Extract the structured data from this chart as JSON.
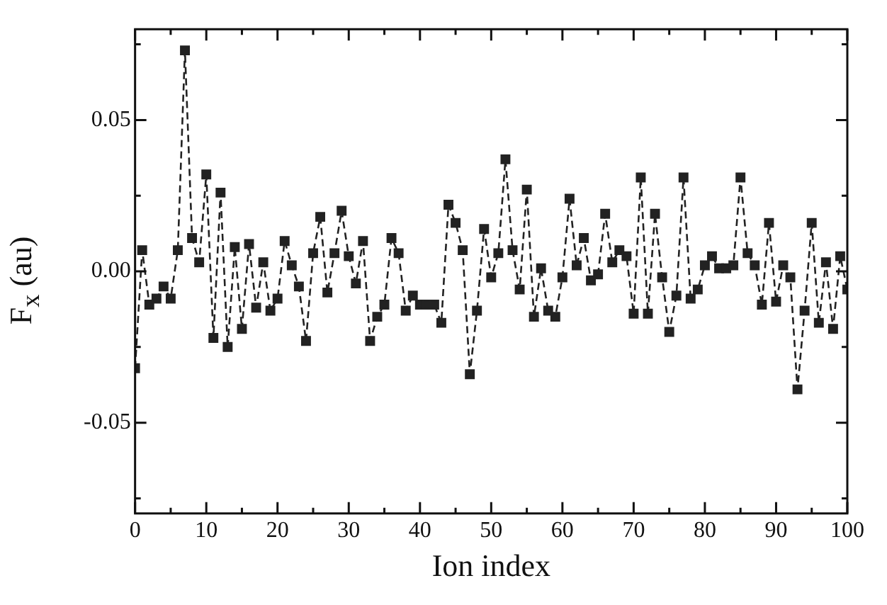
{
  "chart_data": {
    "type": "line",
    "xlabel": "Ion index",
    "ylabel": "F$_{x}$ (au)",
    "x": [
      0,
      1,
      2,
      3,
      4,
      5,
      6,
      7,
      8,
      9,
      10,
      11,
      12,
      13,
      14,
      15,
      16,
      17,
      18,
      19,
      20,
      21,
      22,
      23,
      24,
      25,
      26,
      27,
      28,
      29,
      30,
      31,
      32,
      33,
      34,
      35,
      36,
      37,
      38,
      39,
      40,
      41,
      42,
      43,
      44,
      45,
      46,
      47,
      48,
      49,
      50,
      51,
      52,
      53,
      54,
      55,
      56,
      57,
      58,
      59,
      60,
      61,
      62,
      63,
      64,
      65,
      66,
      67,
      68,
      69,
      70,
      71,
      72,
      73,
      74,
      75,
      76,
      77,
      78,
      79,
      80,
      81,
      82,
      83,
      84,
      85,
      86,
      87,
      88,
      89,
      90,
      91,
      92,
      93,
      94,
      95,
      96,
      97,
      98,
      99,
      100
    ],
    "series": [
      {
        "color": "#222222",
        "values": [
          -0.032,
          0.007,
          -0.011,
          -0.009,
          -0.005,
          -0.009,
          0.007,
          0.073,
          0.011,
          0.003,
          0.032,
          -0.022,
          0.026,
          -0.025,
          0.008,
          -0.019,
          0.009,
          -0.012,
          0.003,
          -0.013,
          -0.009,
          0.01,
          0.002,
          -0.005,
          -0.023,
          0.006,
          0.018,
          -0.007,
          0.006,
          0.02,
          0.005,
          -0.004,
          0.01,
          -0.023,
          -0.015,
          -0.011,
          0.011,
          0.006,
          -0.013,
          -0.008,
          -0.011,
          -0.011,
          -0.011,
          -0.017,
          0.022,
          0.016,
          0.007,
          -0.034,
          -0.013,
          0.014,
          -0.002,
          0.006,
          0.037,
          0.007,
          -0.006,
          0.027,
          -0.015,
          0.001,
          -0.013,
          -0.015,
          -0.002,
          0.024,
          0.002,
          0.011,
          -0.003,
          -0.001,
          0.019,
          0.003,
          0.007,
          0.005,
          -0.014,
          0.031,
          -0.014,
          0.019,
          -0.002,
          -0.02,
          -0.008,
          0.031,
          -0.009,
          -0.006,
          0.002,
          0.005,
          0.001,
          0.001,
          0.002,
          0.031,
          0.006,
          0.002,
          -0.011,
          0.016,
          -0.01,
          0.002,
          -0.002,
          -0.039,
          -0.013,
          0.016,
          -0.017,
          0.003,
          -0.019,
          0.005,
          -0.006
        ]
      }
    ],
    "xlim": [
      0,
      100
    ],
    "xticks": [
      0,
      {
        "value": 5,
        "label": null
      },
      10,
      {
        "value": 15,
        "label": null
      },
      20,
      {
        "value": 25,
        "label": null
      },
      30,
      {
        "value": 35,
        "label": null
      },
      40,
      {
        "value": 45,
        "label": null
      },
      50,
      {
        "value": 55,
        "label": null
      },
      60,
      {
        "value": 65,
        "label": null
      },
      70,
      {
        "value": 75,
        "label": null
      },
      80,
      {
        "value": 85,
        "label": null
      },
      90,
      {
        "value": 95,
        "label": null
      },
      100
    ],
    "ylim": [
      -0.08,
      0.08
    ],
    "yticks": [
      {
        "value": -0.075,
        "label": null
      },
      -0.05,
      {
        "value": -0.025,
        "label": null
      },
      {
        "value": 0,
        "label": "0.00"
      },
      {
        "value": 0.025,
        "label": null
      },
      0.05,
      {
        "value": 0.075,
        "label": null
      }
    ],
    "grid": false,
    "legend": false,
    "marker": "square",
    "line_style": "dashed"
  }
}
